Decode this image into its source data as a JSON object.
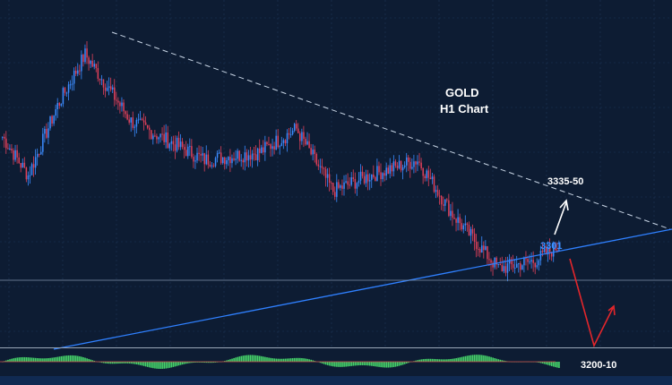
{
  "chart_data": {
    "type": "candlestick",
    "title": "GOLD",
    "subtitle": "H1 Chart",
    "instrument": "GOLD",
    "timeframe": "H1",
    "annotations": {
      "upper_target": "3335-50",
      "breakout_level": "3301",
      "lower_target": "3200-10"
    },
    "price_anchor_points": [
      {
        "bar": 0,
        "close": 3355
      },
      {
        "bar": 14,
        "close": 3330
      },
      {
        "bar": 30,
        "close": 3375
      },
      {
        "bar": 45,
        "close": 3408
      },
      {
        "bar": 70,
        "close": 3365
      },
      {
        "bar": 110,
        "close": 3340
      },
      {
        "bar": 140,
        "close": 3345
      },
      {
        "bar": 160,
        "close": 3360
      },
      {
        "bar": 180,
        "close": 3320
      },
      {
        "bar": 200,
        "close": 3330
      },
      {
        "bar": 226,
        "close": 3340
      },
      {
        "bar": 245,
        "close": 3305
      },
      {
        "bar": 270,
        "close": 3270
      },
      {
        "bar": 290,
        "close": 3275
      },
      {
        "bar": 303,
        "close": 3285
      }
    ],
    "projection": {
      "up_scenario_target": "3335-50",
      "down_scenario_target": "3200-10"
    },
    "grid": true,
    "indicator_panel": "histogram oscillator",
    "colors": {
      "background": "#0d1c33",
      "grid": "#1d3556",
      "candle_up": "#3b8cff",
      "candle_down": "#e0405a",
      "upper_trendline": "#c9d6e6",
      "lower_trendline": "#2f80ff",
      "breakout_label": "#3a8dff",
      "up_arrow": "#ffffff",
      "down_arrow": "#e3262b",
      "histogram": "#46d36a"
    }
  }
}
